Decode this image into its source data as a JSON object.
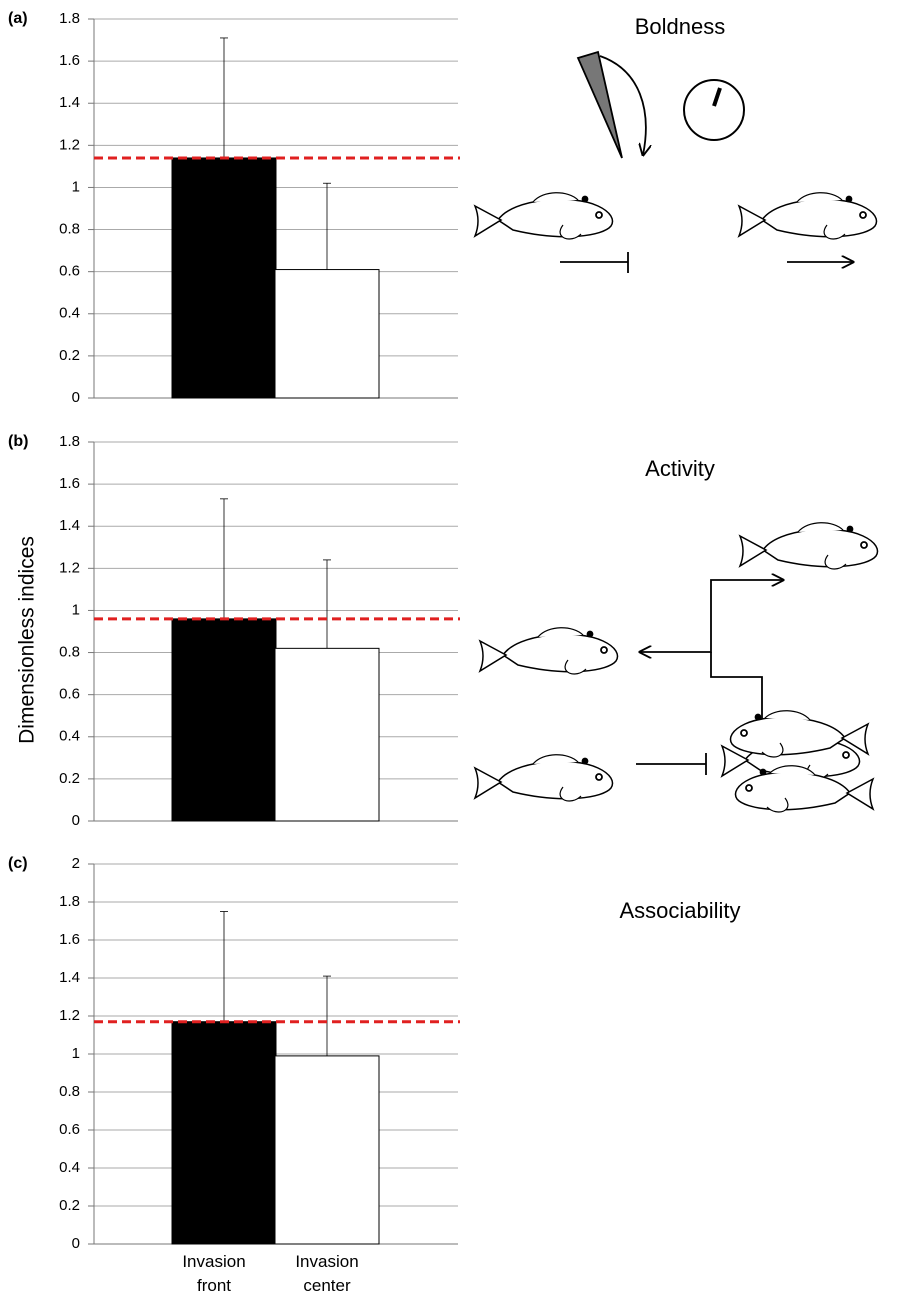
{
  "chart_data": [
    {
      "type": "bar",
      "panel_label": "(a)",
      "title": "Boldness",
      "values": [
        1.14,
        0.61
      ],
      "errors": [
        0.57,
        0.41
      ],
      "colors": [
        "#000000",
        "#ffffff"
      ],
      "reference_line": 1.14,
      "reference_color": "#e02020",
      "ylim": [
        0,
        1.8
      ],
      "yticks": [
        0,
        0.2,
        0.4,
        0.6,
        0.8,
        1,
        1.2,
        1.4,
        1.6,
        1.8
      ],
      "grid": true
    },
    {
      "type": "bar",
      "panel_label": "(b)",
      "title": "Activity",
      "values": [
        0.96,
        0.82
      ],
      "errors": [
        0.57,
        0.42
      ],
      "colors": [
        "#000000",
        "#ffffff"
      ],
      "reference_line": 0.96,
      "reference_color": "#e02020",
      "ylim": [
        0,
        1.8
      ],
      "yticks": [
        0,
        0.2,
        0.4,
        0.6,
        0.8,
        1,
        1.2,
        1.4,
        1.6,
        1.8
      ],
      "grid": true
    },
    {
      "type": "bar",
      "panel_label": "(c)",
      "title": "Associability",
      "values": [
        1.17,
        0.99
      ],
      "errors": [
        0.58,
        0.42
      ],
      "colors": [
        "#000000",
        "#ffffff"
      ],
      "reference_line": 1.17,
      "reference_color": "#e02020",
      "ylim": [
        0,
        2
      ],
      "yticks": [
        0,
        0.2,
        0.4,
        0.6,
        0.8,
        1,
        1.2,
        1.4,
        1.6,
        1.8,
        2
      ],
      "grid": true
    }
  ],
  "y_label": "Dimensionless indices",
  "categories": [
    "Invasion front",
    "Invasion center"
  ]
}
